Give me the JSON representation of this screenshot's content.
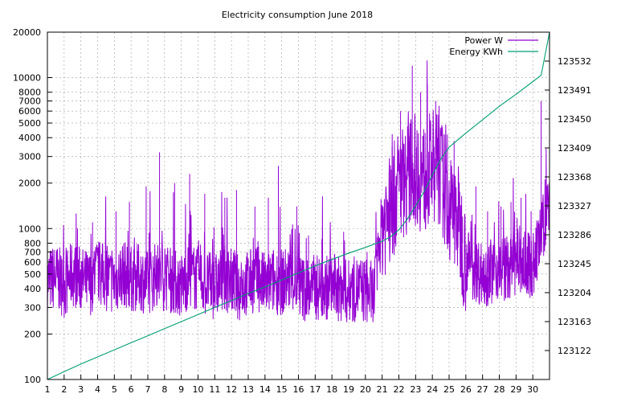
{
  "chart_data": {
    "type": "line",
    "title": "Electricity consumption June 2018",
    "xlabel": "",
    "ylabel": "",
    "x_ticks": [
      "1",
      "2",
      "3",
      "4",
      "5",
      "6",
      "7",
      "8",
      "9",
      "10",
      "11",
      "12",
      "13",
      "14",
      "15",
      "16",
      "17",
      "18",
      "19",
      "20",
      "21",
      "22",
      "23",
      "24",
      "25",
      "26",
      "27",
      "28",
      "29",
      "30"
    ],
    "xlim": [
      1,
      31
    ],
    "y_left": {
      "scale": "log",
      "ylim": [
        100,
        20000
      ],
      "ticks": [
        "100",
        "200",
        "300",
        "400",
        "500",
        "600",
        "700",
        "800",
        "1000",
        "2000",
        "3000",
        "4000",
        "5000",
        "6000",
        "7000",
        "8000",
        "10000",
        "20000"
      ]
    },
    "y_right": {
      "scale": "linear",
      "ylim": [
        123081,
        123573
      ],
      "ticks": [
        "123122",
        "123163",
        "123204",
        "123245",
        "123286",
        "123327",
        "123368",
        "123409",
        "123450",
        "123491",
        "123532"
      ]
    },
    "grid": true,
    "legend_position": "top-right",
    "series": [
      {
        "name": "Power W",
        "axis": "left",
        "color": "#9400d3",
        "x": [
          1,
          1.5,
          2,
          2.5,
          3,
          3.5,
          4,
          4.5,
          5,
          5.5,
          6,
          6.5,
          7,
          7.5,
          8,
          8.5,
          9,
          9.5,
          10,
          10.5,
          11,
          11.5,
          12,
          12.5,
          13,
          13.5,
          14,
          14.5,
          15,
          15.5,
          16,
          16.5,
          17,
          17.5,
          18,
          18.5,
          19,
          19.5,
          20,
          20.5,
          21,
          21.5,
          22,
          22.5,
          23,
          23.5,
          24,
          24.5,
          25,
          25.5,
          26,
          26.5,
          27,
          27.5,
          28,
          28.5,
          29,
          29.5,
          30,
          30.5,
          31
        ],
        "values": [
          450,
          480,
          420,
          500,
          460,
          430,
          520,
          470,
          440,
          510,
          460,
          480,
          430,
          500,
          470,
          450,
          420,
          490,
          460,
          430,
          410,
          470,
          450,
          400,
          440,
          460,
          420,
          450,
          440,
          470,
          420,
          390,
          410,
          400,
          420,
          390,
          380,
          400,
          390,
          360,
          1100,
          1300,
          2000,
          2200,
          2500,
          2100,
          2600,
          2400,
          1300,
          1200,
          600,
          550,
          500,
          520,
          560,
          540,
          600,
          580,
          560,
          900,
          1600
        ],
        "peak_values": [
          650,
          1000,
          1100,
          1300,
          1500,
          1900,
          3200,
          2000,
          2300,
          1700,
          1600,
          1800,
          1400,
          1600,
          2600,
          1400,
          900,
          850,
          950,
          700,
          3500,
          6000,
          12000,
          8000,
          9000,
          7000,
          4200,
          3800,
          1200,
          1900,
          1300,
          1400,
          1500,
          1600,
          1300,
          7000
        ],
        "peak_x": [
          1.2,
          2.8,
          3.7,
          5.1,
          5.9,
          6.9,
          7.7,
          8.6,
          9.5,
          10.4,
          11.6,
          12.3,
          13.4,
          14.2,
          14.8,
          15.9,
          16.6,
          17.4,
          18.7,
          20.1,
          21.6,
          22.1,
          22.8,
          23.3,
          23.7,
          24.2,
          24.9,
          25.3,
          25.8,
          26.6,
          27.3,
          28.1,
          28.7,
          29.3,
          29.9,
          30.5
        ]
      },
      {
        "name": "Energy KWh",
        "axis": "right",
        "color": "#009e73",
        "x": [
          1,
          2,
          3,
          4,
          5,
          6,
          7,
          8,
          9,
          10,
          11,
          12,
          13,
          14,
          15,
          16,
          17,
          18,
          19,
          20,
          21,
          21.5,
          22,
          22.5,
          23,
          23.5,
          24,
          24.5,
          25,
          25.5,
          26,
          27,
          28,
          29,
          30,
          30.5,
          31
        ],
        "values": [
          123081,
          123092,
          123103,
          123113,
          123123,
          123133,
          123143,
          123153,
          123163,
          123173,
          123183,
          123193,
          123203,
          123212,
          123222,
          123232,
          123242,
          123251,
          123260,
          123268,
          123277,
          123283,
          123293,
          123308,
          123327,
          123347,
          123371,
          123393,
          123410,
          123420,
          123430,
          123449,
          123468,
          123485,
          123503,
          123512,
          123573
        ]
      }
    ]
  }
}
